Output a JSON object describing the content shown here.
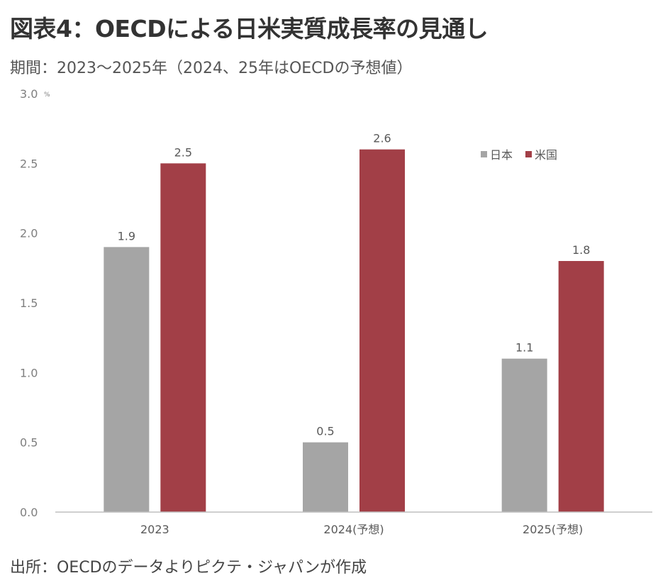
{
  "header": {
    "title": "図表4：OECDによる日米実質成長率の見通し",
    "subtitle": "期間：2023～2025年（2024、25年はOECDの予想値）"
  },
  "footer": {
    "source": "出所：OECDのデータよりピクテ・ジャパンが作成"
  },
  "chart_data": {
    "type": "bar",
    "categories": [
      "2023",
      "2024(予想)",
      "2025(予想)"
    ],
    "series": [
      {
        "name": "日本",
        "values": [
          1.9,
          0.5,
          1.1
        ],
        "color": "#a5a5a5"
      },
      {
        "name": "米国",
        "values": [
          2.5,
          2.6,
          1.8
        ],
        "color": "#a23f47"
      }
    ],
    "ylim": [
      0,
      3.0
    ],
    "yticks": [
      "0.0",
      "0.5",
      "1.0",
      "1.5",
      "2.0",
      "2.5",
      "3.0"
    ],
    "yunit": "%",
    "data_labels": true,
    "grid": false,
    "legend_position": "top-right"
  }
}
